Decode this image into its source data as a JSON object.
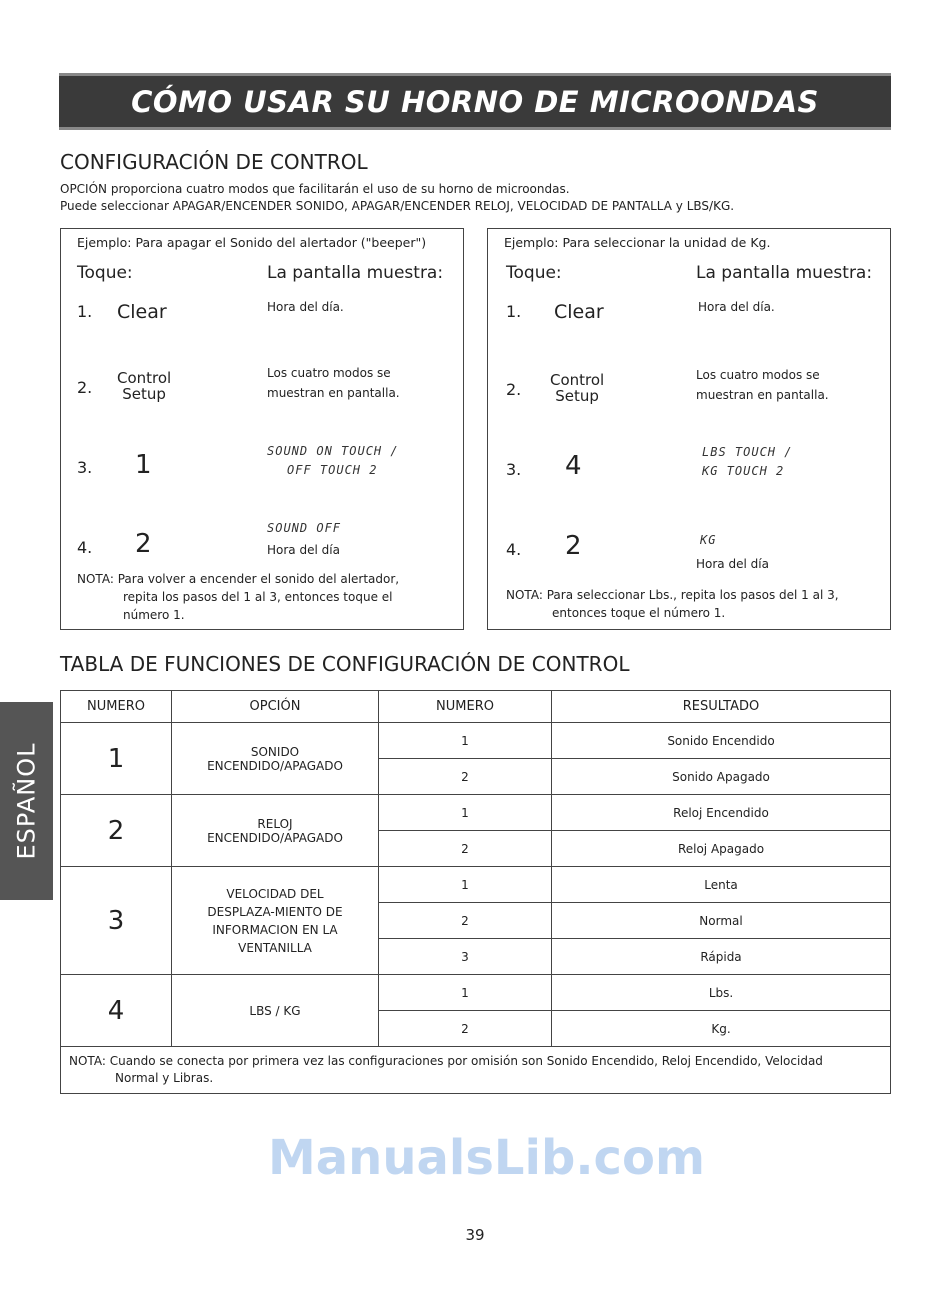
{
  "banner": "CÓMO USAR SU HORNO DE MICROONDAS",
  "section1": {
    "title": "CONFIGURACIÓN DE CONTROL",
    "intro": [
      "OPCIÓN proporciona cuatro modos que facilitarán el uso de su horno de microondas.",
      "Puede seleccionar APAGAR/ENCENDER SONIDO, APAGAR/ENCENDER RELOJ, VELOCIDAD DE PANTALLA y LBS/KG."
    ]
  },
  "examples": [
    {
      "example": "Ejemplo: Para apagar el Sonido del alertador (\"beeper\")",
      "touch": "Toque:",
      "display": "La pantalla muestra:",
      "steps": [
        {
          "n": "1.",
          "key": "Clear",
          "d1": "Hora del día."
        },
        {
          "n": "2.",
          "key1": "Control",
          "key2": "Setup",
          "d1": "Los cuatro modos se",
          "d2": "muestran en pantalla."
        },
        {
          "n": "3.",
          "key": "1",
          "lcd1": "SOUND ON TOUCH /",
          "lcd2": "OFF TOUCH 2"
        },
        {
          "n": "4.",
          "key": "2",
          "lcd1": "SOUND OFF",
          "d1": "Hora del día"
        }
      ],
      "note_label": "NOTA:",
      "note1": "Para volver a encender el sonido del alertador,",
      "note2": "repita los pasos del 1 al 3, entonces toque el",
      "note3": "número 1."
    },
    {
      "example": "Ejemplo: Para seleccionar la unidad de Kg.",
      "touch": "Toque:",
      "display": "La pantalla muestra:",
      "steps": [
        {
          "n": "1.",
          "key": "Clear",
          "d1": "Hora del día."
        },
        {
          "n": "2.",
          "key1": "Control",
          "key2": "Setup",
          "d1": "Los cuatro modos se",
          "d2": "muestran en pantalla."
        },
        {
          "n": "3.",
          "key": "4",
          "lcd1": "LBS TOUCH /",
          "lcd2": "KG TOUCH 2"
        },
        {
          "n": "4.",
          "key": "2",
          "lcd1": "KG",
          "d1": "Hora del día"
        }
      ],
      "note_label": "NOTA:",
      "note1": "Para seleccionar Lbs., repita los pasos del 1 al 3,",
      "note2": "entonces toque el número 1."
    }
  ],
  "section2": {
    "title": "TABLA DE FUNCIONES DE CONFIGURACIÓN DE CONTROL",
    "headers": [
      "NUMERO",
      "OPCIÓN",
      "NUMERO",
      "RESULTADO"
    ],
    "rows": [
      {
        "num": "1",
        "option1": "SONIDO",
        "option2": "ENCENDIDO/APAGADO",
        "sub": [
          [
            "1",
            "Sonido Encendido"
          ],
          [
            "2",
            "Sonido Apagado"
          ]
        ]
      },
      {
        "num": "2",
        "option1": "RELOJ",
        "option2": "ENCENDIDO/APAGADO",
        "sub": [
          [
            "1",
            "Reloj Encendido"
          ],
          [
            "2",
            "Reloj Apagado"
          ]
        ]
      },
      {
        "num": "3",
        "option1": "VELOCIDAD DEL",
        "option2": "DESPLAZA-MIENTO DE",
        "option3": "INFORMACION EN LA",
        "option4": "VENTANILLA",
        "sub": [
          [
            "1",
            "Lenta"
          ],
          [
            "2",
            "Normal"
          ],
          [
            "3",
            "Rápida"
          ]
        ]
      },
      {
        "num": "4",
        "option1": "LBS / KG",
        "sub": [
          [
            "1",
            "Lbs."
          ],
          [
            "2",
            "Kg."
          ]
        ]
      }
    ],
    "note_label": "NOTA:",
    "note1": "Cuando se conecta por primera vez las configuraciones por omisión son Sonido Encendido, Reloj Encendido, Velocidad",
    "note2": "Normal y Libras."
  },
  "side_tab": "ESPAÑOL",
  "page_number": "39",
  "watermark": "ManualsLib.com"
}
